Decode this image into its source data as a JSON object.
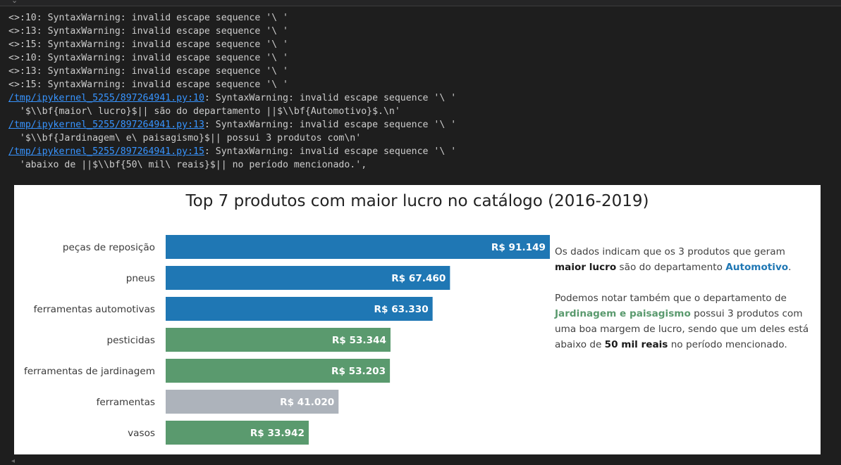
{
  "output": {
    "warnings": [
      "<>:10: SyntaxWarning: invalid escape sequence '\\ '",
      "<>:13: SyntaxWarning: invalid escape sequence '\\ '",
      "<>:15: SyntaxWarning: invalid escape sequence '\\ '",
      "<>:10: SyntaxWarning: invalid escape sequence '\\ '",
      "<>:13: SyntaxWarning: invalid escape sequence '\\ '",
      "<>:15: SyntaxWarning: invalid escape sequence '\\ '"
    ],
    "traces": [
      {
        "link": "/tmp/ipykernel_5255/897264941.py:10",
        "message": ": SyntaxWarning: invalid escape sequence '\\ '",
        "code": "  '$\\\\bf{maior\\ lucro}$|| são do departamento ||$\\\\bf{Automotivo}$.\\n'"
      },
      {
        "link": "/tmp/ipykernel_5255/897264941.py:13",
        "message": ": SyntaxWarning: invalid escape sequence '\\ '",
        "code": "  '$\\\\bf{Jardinagem\\ e\\ paisagismo}$|| possui 3 produtos com\\n'"
      },
      {
        "link": "/tmp/ipykernel_5255/897264941.py:15",
        "message": ": SyntaxWarning: invalid escape sequence '\\ '",
        "code": "  'abaixo de ||$\\\\bf{50\\ mil\\ reais}$|| no período mencionado.',"
      }
    ]
  },
  "chart_data": {
    "type": "bar",
    "orientation": "horizontal",
    "title": "Top 7 produtos com maior lucro no catálogo (2016-2019)",
    "categories": [
      "peças de reposição",
      "pneus",
      "ferramentas automotivas",
      "pesticidas",
      "ferramentas de jardinagem",
      "ferramentas",
      "vasos"
    ],
    "values": [
      91149,
      67460,
      63330,
      53344,
      53203,
      41020,
      33942
    ],
    "value_labels": [
      "R$ 91.149",
      "R$ 67.460",
      "R$ 63.330",
      "R$ 53.344",
      "R$ 53.203",
      "R$ 41.020",
      "R$ 33.942"
    ],
    "colors": [
      "#1f77b4",
      "#1f77b4",
      "#1f77b4",
      "#5a9a6e",
      "#5a9a6e",
      "#adb3bb",
      "#5a9a6e"
    ],
    "xlim": [
      0,
      91149
    ],
    "grid": false
  },
  "annotation": {
    "p1_a": "Os dados indicam que os 3 produtos que geram",
    "p1_b": "maior lucro",
    "p1_c": " são do departamento ",
    "p1_d": "Automotivo",
    "p1_e": ".",
    "p2_a": "Podemos notar também que o departamento de",
    "p2_b": "Jardinagem e paisagismo",
    "p2_c": " possui 3 produtos com uma boa margem de lucro, sendo que um deles está abaixo de ",
    "p2_d": "50 mil reais",
    "p2_e": " no período mencionado."
  }
}
